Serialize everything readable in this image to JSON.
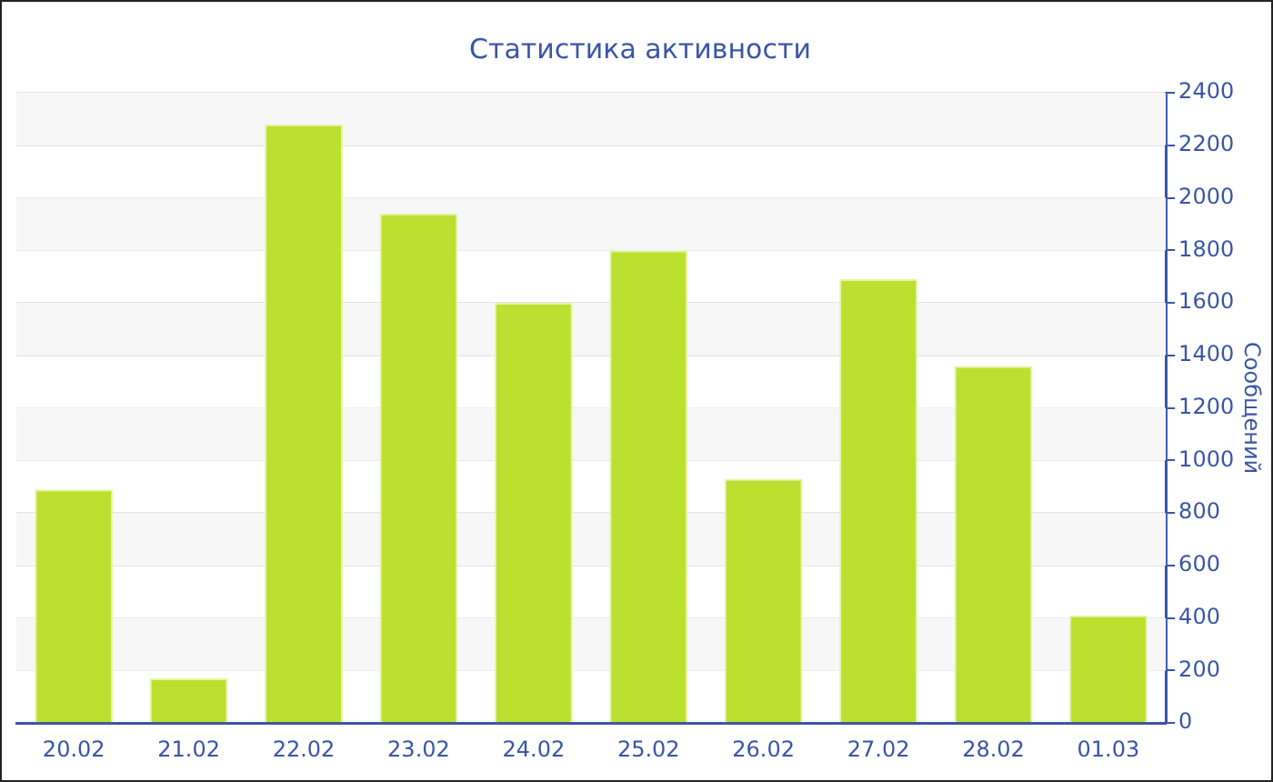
{
  "chart_data": {
    "type": "bar",
    "title": "Статистика активности",
    "ylabel": "Сообщений",
    "categories": [
      "20.02",
      "21.02",
      "22.02",
      "23.02",
      "24.02",
      "25.02",
      "26.02",
      "27.02",
      "28.02",
      "01.03"
    ],
    "values": [
      890,
      170,
      2280,
      1940,
      1600,
      1800,
      930,
      1690,
      1360,
      410
    ],
    "color": "#bce030",
    "ylim": [
      0,
      2400
    ],
    "yticks": [
      0,
      200,
      400,
      600,
      800,
      1000,
      1200,
      1400,
      1600,
      1800,
      2000,
      2200,
      2400
    ],
    "grid": "y",
    "legend": false
  }
}
